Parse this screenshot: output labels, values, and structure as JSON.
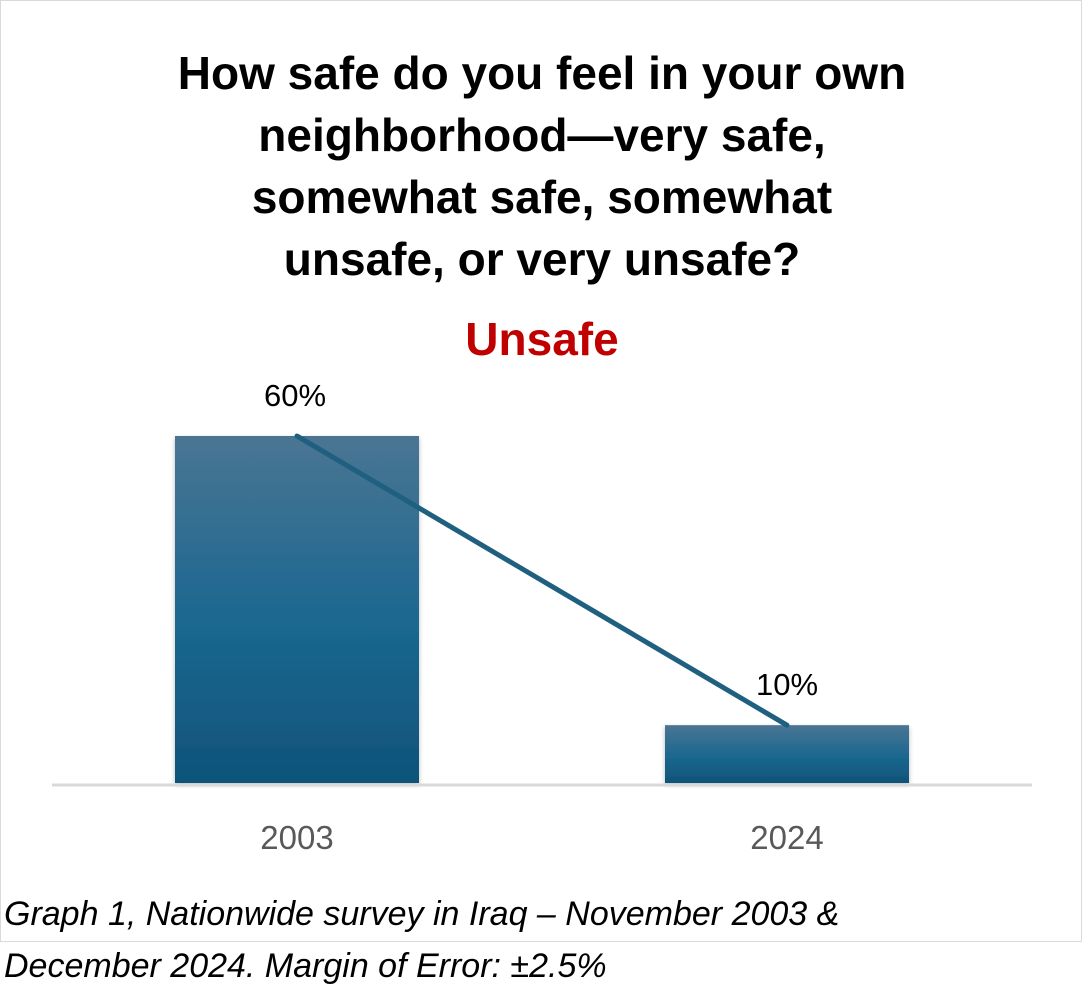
{
  "title_lines": [
    "How safe do you feel in your own",
    "neighborhood—very safe,",
    "somewhat safe, somewhat",
    "unsafe, or very unsafe?"
  ],
  "subtitle": "Unsafe",
  "colors": {
    "subtitle": "#c00000",
    "bar_top": "#4a7593",
    "bar_mid": "#1a6790",
    "bar_bottom": "#0f5378",
    "trend_line": "#1f5f80",
    "axis": "#d9d9d9",
    "tick_label": "#595959"
  },
  "chart_data": {
    "type": "bar",
    "categories": [
      "2003",
      "2024"
    ],
    "values": [
      60,
      10
    ],
    "data_labels": [
      "60%",
      "10%"
    ],
    "ylim": [
      0,
      60
    ],
    "grid": false,
    "overlay": "line connecting bar tops"
  },
  "caption_lines": [
    "Graph 1, Nationwide survey in Iraq – November 2003 &",
    "December 2024. Margin of Error: ±2.5%"
  ]
}
